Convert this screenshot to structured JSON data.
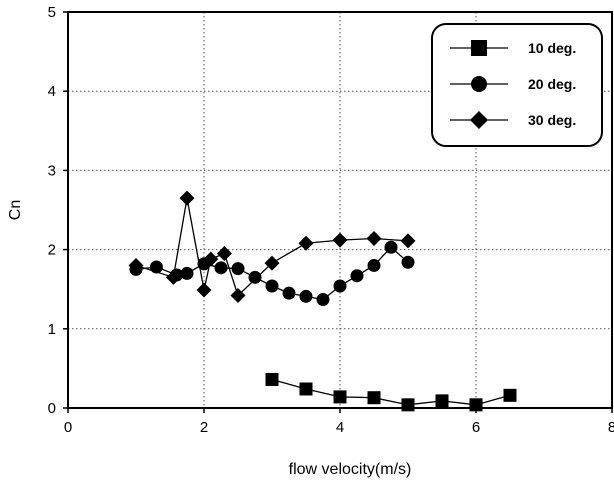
{
  "chart_data": {
    "type": "line",
    "title": "",
    "xlabel": "flow velocity(m/s)",
    "ylabel": "Cn",
    "xlim": [
      0,
      8
    ],
    "ylim": [
      0,
      5
    ],
    "x_ticks": [
      0,
      2,
      4,
      6,
      8
    ],
    "y_ticks": [
      0,
      1,
      2,
      3,
      4,
      5
    ],
    "grid": true,
    "legend_position": "top-right",
    "series": [
      {
        "name": "10 deg.",
        "marker": "square",
        "x": [
          3.0,
          3.5,
          4.0,
          4.5,
          5.0,
          5.5,
          6.0,
          6.5
        ],
        "y": [
          0.36,
          0.24,
          0.14,
          0.13,
          0.04,
          0.09,
          0.04,
          0.16
        ]
      },
      {
        "name": "20 deg.",
        "marker": "circle",
        "x": [
          1.0,
          1.3,
          1.6,
          1.75,
          2.0,
          2.25,
          2.5,
          2.75,
          3.0,
          3.25,
          3.5,
          3.75,
          4.0,
          4.25,
          4.5,
          4.75,
          5.0
        ],
        "y": [
          1.75,
          1.78,
          1.68,
          1.7,
          1.82,
          1.77,
          1.76,
          1.65,
          1.54,
          1.45,
          1.41,
          1.37,
          1.54,
          1.67,
          1.8,
          2.03,
          1.84
        ]
      },
      {
        "name": "30 deg.",
        "marker": "diamond",
        "x": [
          1.0,
          1.55,
          1.75,
          2.0,
          2.1,
          2.3,
          2.5,
          3.0,
          3.5,
          4.0,
          4.5,
          5.0
        ],
        "y": [
          1.8,
          1.65,
          2.65,
          1.49,
          1.88,
          1.95,
          1.42,
          1.83,
          2.08,
          2.12,
          2.14,
          2.11
        ]
      }
    ]
  }
}
